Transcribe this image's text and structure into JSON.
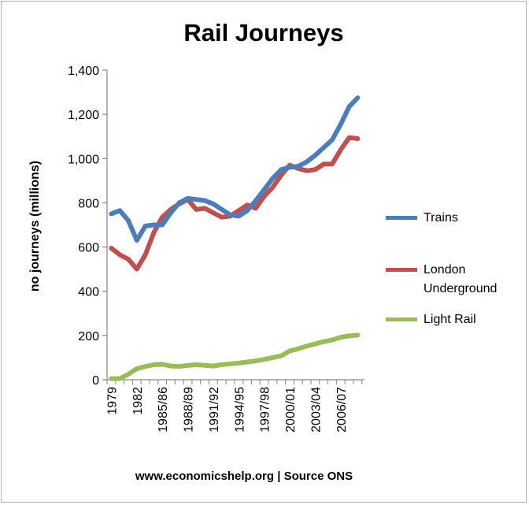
{
  "chart_data": {
    "type": "line",
    "title": "Rail Journeys",
    "xlabel": "",
    "ylabel": "no journeys (millions)",
    "ylim": [
      0,
      1400
    ],
    "yticks": [
      0,
      200,
      400,
      600,
      800,
      1000,
      1200,
      1400
    ],
    "ytick_labels": [
      "0",
      "200",
      "400",
      "600",
      "800",
      "1,000",
      "1,200",
      "1,400"
    ],
    "x_tick_labels": [
      "1979",
      "1982",
      "1985/86",
      "1988/89",
      "1991/92",
      "1994/95",
      "1997/98",
      "2000/01",
      "2003/04",
      "2006/07"
    ],
    "x_tick_indices": [
      0,
      3,
      6,
      9,
      12,
      15,
      18,
      21,
      24,
      27
    ],
    "n_points": 30,
    "legend_position": "right",
    "series": [
      {
        "name": "Trains",
        "color": "#4a7ebb",
        "values": [
          750,
          765,
          720,
          630,
          695,
          700,
          700,
          755,
          800,
          820,
          815,
          810,
          795,
          770,
          745,
          740,
          765,
          810,
          860,
          910,
          950,
          960,
          965,
          985,
          1015,
          1050,
          1085,
          1155,
          1235,
          1275
        ]
      },
      {
        "name": "London Underground",
        "name_lines": [
          "London",
          "Underground"
        ],
        "color": "#c0504d",
        "values": [
          595,
          565,
          545,
          500,
          565,
          665,
          735,
          770,
          795,
          815,
          770,
          775,
          755,
          735,
          740,
          765,
          790,
          775,
          830,
          870,
          925,
          970,
          955,
          945,
          950,
          975,
          975,
          1040,
          1095,
          1090
        ]
      },
      {
        "name": "Light Rail",
        "color": "#9bbb59",
        "values": [
          5,
          5,
          25,
          50,
          60,
          68,
          70,
          62,
          60,
          65,
          68,
          65,
          62,
          68,
          72,
          75,
          80,
          85,
          92,
          100,
          108,
          130,
          140,
          152,
          162,
          172,
          180,
          192,
          198,
          202
        ]
      }
    ]
  },
  "footer": "www.economicshelp.org | Source ONS"
}
